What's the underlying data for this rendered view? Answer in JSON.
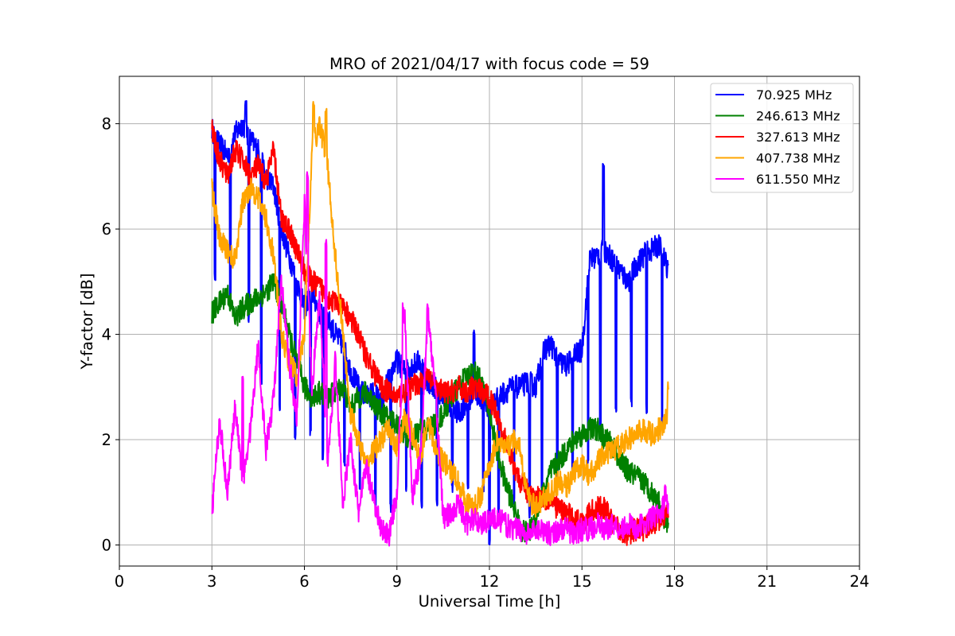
{
  "chart_data": {
    "type": "line",
    "title": "MRO of 2021/04/17 with focus code = 59",
    "xlabel": "Universal Time [h]",
    "ylabel": "Y-factor [dB]",
    "xlim": [
      0,
      24
    ],
    "ylim": [
      -0.4,
      8.9
    ],
    "xticks": [
      0,
      3,
      6,
      9,
      12,
      15,
      18,
      21,
      24
    ],
    "yticks": [
      0,
      2,
      4,
      6,
      8
    ],
    "grid": true,
    "legend_position": "top-right",
    "series": [
      {
        "name": "70.925 MHz",
        "color": "#0000ff",
        "x": [
          3.0,
          3.25,
          3.5,
          3.75,
          4.0,
          4.25,
          4.5,
          4.75,
          5.0,
          5.25,
          5.5,
          5.75,
          6.0,
          6.25,
          6.5,
          6.75,
          7.0,
          7.25,
          7.5,
          7.75,
          8.0,
          8.25,
          8.5,
          8.75,
          9.0,
          9.25,
          9.5,
          9.75,
          10.0,
          10.25,
          10.5,
          10.75,
          11.0,
          11.25,
          11.5,
          11.75,
          12.0,
          12.25,
          12.5,
          12.75,
          13.0,
          13.25,
          13.5,
          13.75,
          14.0,
          14.25,
          14.5,
          14.75,
          15.0,
          15.25,
          15.5,
          15.75,
          16.0,
          16.25,
          16.5,
          16.75,
          17.0,
          17.25,
          17.5,
          17.75
        ],
        "y": [
          7.9,
          7.6,
          7.4,
          7.8,
          8.0,
          7.7,
          7.5,
          7.0,
          6.8,
          6.0,
          5.5,
          5.0,
          4.5,
          4.8,
          4.4,
          4.3,
          4.0,
          3.8,
          3.3,
          3.0,
          2.8,
          2.9,
          2.7,
          3.2,
          3.5,
          3.3,
          3.4,
          3.5,
          3.1,
          3.0,
          2.8,
          2.6,
          2.5,
          2.7,
          2.9,
          2.8,
          2.6,
          2.8,
          2.9,
          3.0,
          3.0,
          3.1,
          3.0,
          3.7,
          3.8,
          3.5,
          3.4,
          3.6,
          3.7,
          5.4,
          5.5,
          5.6,
          5.4,
          5.2,
          5.0,
          5.3,
          5.5,
          5.6,
          5.7,
          5.3
        ],
        "dips": [
          [
            3.1,
            5.0
          ],
          [
            3.6,
            4.5
          ],
          [
            4.2,
            4.2
          ],
          [
            4.6,
            3.0
          ],
          [
            5.2,
            2.5
          ],
          [
            5.7,
            2.0
          ],
          [
            6.2,
            2.0
          ],
          [
            6.6,
            1.6
          ],
          [
            7.3,
            1.5
          ],
          [
            7.8,
            1.0
          ],
          [
            8.3,
            0.6
          ],
          [
            8.8,
            0.6
          ],
          [
            9.3,
            1.0
          ],
          [
            9.8,
            0.7
          ],
          [
            10.3,
            0.7
          ],
          [
            10.8,
            1.0
          ],
          [
            11.3,
            1.0
          ],
          [
            11.8,
            0.9
          ],
          [
            12.0,
            0.0
          ],
          [
            12.3,
            0.5
          ],
          [
            12.8,
            0.7
          ],
          [
            13.3,
            0.5
          ],
          [
            13.7,
            1.0
          ],
          [
            14.2,
            1.0
          ],
          [
            14.7,
            1.2
          ],
          [
            15.2,
            1.5
          ],
          [
            15.6,
            2.0
          ],
          [
            16.1,
            2.5
          ],
          [
            16.6,
            2.6
          ],
          [
            17.1,
            2.5
          ],
          [
            17.6,
            2.2
          ]
        ],
        "spikes": [
          [
            4.1,
            8.45
          ],
          [
            11.5,
            4.1
          ],
          [
            15.7,
            7.25
          ]
        ]
      },
      {
        "name": "246.613 MHz",
        "color": "#008000",
        "x": [
          3.0,
          3.25,
          3.5,
          3.75,
          4.0,
          4.25,
          4.5,
          4.75,
          5.0,
          5.25,
          5.5,
          5.75,
          6.0,
          6.25,
          6.5,
          6.75,
          7.0,
          7.25,
          7.5,
          7.75,
          8.0,
          8.25,
          8.5,
          8.75,
          9.0,
          9.25,
          9.5,
          9.75,
          10.0,
          10.25,
          10.5,
          10.75,
          11.0,
          11.25,
          11.5,
          11.75,
          12.0,
          12.25,
          12.5,
          12.75,
          13.0,
          13.25,
          13.5,
          13.75,
          14.0,
          14.25,
          14.5,
          14.75,
          15.0,
          15.25,
          15.5,
          15.75,
          16.0,
          16.25,
          16.5,
          16.75,
          17.0,
          17.25,
          17.5,
          17.75
        ],
        "y": [
          4.4,
          4.6,
          4.8,
          4.3,
          4.5,
          4.6,
          4.7,
          4.8,
          5.0,
          4.6,
          4.0,
          3.5,
          3.0,
          2.8,
          2.9,
          2.8,
          2.9,
          3.0,
          2.6,
          2.8,
          2.9,
          2.7,
          2.5,
          2.4,
          2.3,
          2.1,
          2.0,
          2.2,
          2.2,
          2.3,
          2.5,
          2.8,
          3.0,
          3.2,
          3.3,
          3.1,
          2.5,
          1.8,
          1.2,
          0.8,
          0.3,
          0.2,
          0.5,
          1.0,
          1.4,
          1.6,
          1.8,
          2.0,
          2.1,
          2.2,
          2.2,
          2.0,
          1.9,
          1.6,
          1.4,
          1.3,
          1.2,
          1.0,
          0.8,
          0.4
        ]
      },
      {
        "name": "327.613 MHz",
        "color": "#ff0000",
        "x": [
          3.0,
          3.25,
          3.5,
          3.75,
          4.0,
          4.25,
          4.5,
          4.75,
          5.0,
          5.25,
          5.5,
          5.75,
          6.0,
          6.25,
          6.5,
          6.75,
          7.0,
          7.25,
          7.5,
          7.75,
          8.0,
          8.25,
          8.5,
          8.75,
          9.0,
          9.25,
          9.5,
          9.75,
          10.0,
          10.25,
          10.5,
          10.75,
          11.0,
          11.25,
          11.5,
          11.75,
          12.0,
          12.25,
          12.5,
          12.75,
          13.0,
          13.25,
          13.5,
          13.75,
          14.0,
          14.25,
          14.5,
          14.75,
          15.0,
          15.25,
          15.5,
          15.75,
          16.0,
          16.25,
          16.5,
          16.75,
          17.0,
          17.25,
          17.5,
          17.75
        ],
        "y": [
          7.9,
          7.3,
          7.0,
          7.5,
          7.3,
          7.0,
          7.2,
          6.9,
          7.5,
          6.2,
          6.0,
          5.6,
          5.2,
          5.0,
          4.9,
          4.7,
          4.6,
          4.5,
          4.3,
          4.0,
          3.6,
          3.3,
          3.0,
          2.9,
          2.8,
          2.9,
          3.0,
          3.1,
          3.2,
          3.0,
          2.9,
          2.9,
          3.0,
          2.9,
          3.0,
          2.9,
          2.8,
          2.5,
          2.0,
          1.6,
          1.2,
          1.0,
          0.9,
          0.9,
          0.8,
          0.7,
          0.6,
          0.5,
          0.4,
          0.6,
          0.7,
          0.7,
          0.4,
          0.3,
          0.2,
          0.3,
          0.3,
          0.4,
          0.5,
          0.6
        ]
      },
      {
        "name": "407.738 MHz",
        "color": "#ffa500",
        "x": [
          3.0,
          3.25,
          3.5,
          3.75,
          4.0,
          4.25,
          4.5,
          4.75,
          5.0,
          5.25,
          5.5,
          5.75,
          6.0,
          6.25,
          6.5,
          6.75,
          7.0,
          7.25,
          7.5,
          7.75,
          8.0,
          8.25,
          8.5,
          8.75,
          9.0,
          9.25,
          9.5,
          9.75,
          10.0,
          10.25,
          10.5,
          10.75,
          11.0,
          11.25,
          11.5,
          11.75,
          12.0,
          12.25,
          12.5,
          12.75,
          13.0,
          13.25,
          13.5,
          13.75,
          14.0,
          14.25,
          14.5,
          14.75,
          15.0,
          15.25,
          15.5,
          15.75,
          16.0,
          16.25,
          16.5,
          16.75,
          17.0,
          17.25,
          17.5,
          17.75
        ],
        "y": [
          6.8,
          5.8,
          5.6,
          5.4,
          6.5,
          6.8,
          6.6,
          6.2,
          5.5,
          4.0,
          3.5,
          3.2,
          4.0,
          7.5,
          8.0,
          7.2,
          5.5,
          4.0,
          2.5,
          2.0,
          1.5,
          1.8,
          2.0,
          2.2,
          1.8,
          2.4,
          2.1,
          1.6,
          2.4,
          1.8,
          1.6,
          1.4,
          1.2,
          0.8,
          0.7,
          1.0,
          1.5,
          2.0,
          1.8,
          2.0,
          1.8,
          0.9,
          0.7,
          0.9,
          1.0,
          1.2,
          1.1,
          1.4,
          1.5,
          1.3,
          1.6,
          1.7,
          1.8,
          1.9,
          2.0,
          2.1,
          2.2,
          2.1,
          2.2,
          2.4
        ],
        "spikes": [
          [
            6.3,
            8.45
          ],
          [
            6.7,
            8.3
          ],
          [
            17.8,
            3.1
          ]
        ]
      },
      {
        "name": "611.550 MHz",
        "color": "#ff00ff",
        "x": [
          3.0,
          3.25,
          3.5,
          3.75,
          4.0,
          4.25,
          4.5,
          4.75,
          5.0,
          5.25,
          5.5,
          5.75,
          6.0,
          6.25,
          6.5,
          6.75,
          7.0,
          7.25,
          7.5,
          7.75,
          8.0,
          8.25,
          8.5,
          8.75,
          9.0,
          9.25,
          9.5,
          9.75,
          10.0,
          10.25,
          10.5,
          10.75,
          11.0,
          11.25,
          11.5,
          11.75,
          12.0,
          12.25,
          12.5,
          12.75,
          13.0,
          13.25,
          13.5,
          13.75,
          14.0,
          14.25,
          14.5,
          14.75,
          15.0,
          15.25,
          15.5,
          15.75,
          16.0,
          16.25,
          16.5,
          16.75,
          17.0,
          17.25,
          17.5,
          17.75
        ],
        "y": [
          0.6,
          2.4,
          1.0,
          2.6,
          1.2,
          2.2,
          3.8,
          1.8,
          2.8,
          5.0,
          3.5,
          2.4,
          6.5,
          3.0,
          4.8,
          1.5,
          3.5,
          0.8,
          2.0,
          0.6,
          1.5,
          0.8,
          0.3,
          0.2,
          1.0,
          4.4,
          0.9,
          1.6,
          4.3,
          3.0,
          0.5,
          0.6,
          0.8,
          0.4,
          0.5,
          0.4,
          0.5,
          0.5,
          0.4,
          0.3,
          0.3,
          0.2,
          0.3,
          0.3,
          0.2,
          0.3,
          0.3,
          0.2,
          0.3,
          0.3,
          0.4,
          0.3,
          0.4,
          0.3,
          0.4,
          0.3,
          0.4,
          0.5,
          0.6,
          0.8
        ],
        "spikes": [
          [
            4.0,
            3.2
          ],
          [
            6.1,
            7.1
          ],
          [
            6.7,
            5.8
          ],
          [
            9.2,
            4.6
          ],
          [
            10.0,
            4.6
          ],
          [
            17.7,
            1.2
          ]
        ]
      }
    ]
  }
}
